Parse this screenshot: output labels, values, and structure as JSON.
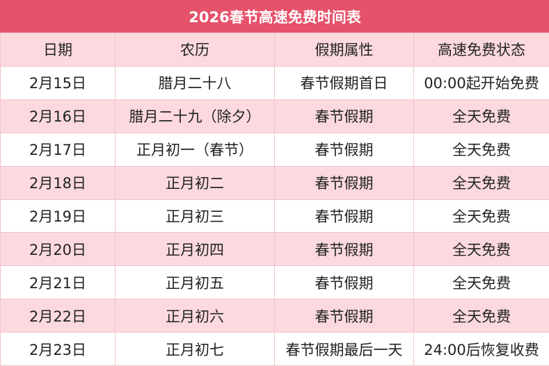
{
  "table": {
    "title": "2026春节高速免费时间表",
    "header": [
      "日期",
      "农历",
      "假期属性",
      "高速免费状态"
    ],
    "rows": [
      [
        "2月15日",
        "腊月二十八",
        "春节假期首日",
        "00:00起开始免费"
      ],
      [
        "2月16日",
        "腊月二十九（除夕）",
        "春节假期",
        "全天免费"
      ],
      [
        "2月17日",
        "正月初一（春节）",
        "春节假期",
        "全天免费"
      ],
      [
        "2月18日",
        "正月初二",
        "春节假期",
        "全天免费"
      ],
      [
        "2月19日",
        "正月初三",
        "春节假期",
        "全天免费"
      ],
      [
        "2月20日",
        "正月初四",
        "春节假期",
        "全天免费"
      ],
      [
        "2月21日",
        "正月初五",
        "春节假期",
        "全天免费"
      ],
      [
        "2月22日",
        "正月初六",
        "春节假期",
        "全天免费"
      ],
      [
        "2月23日",
        "正月初七",
        "春节假期最后一天",
        "24:00后恢复收费"
      ]
    ]
  }
}
